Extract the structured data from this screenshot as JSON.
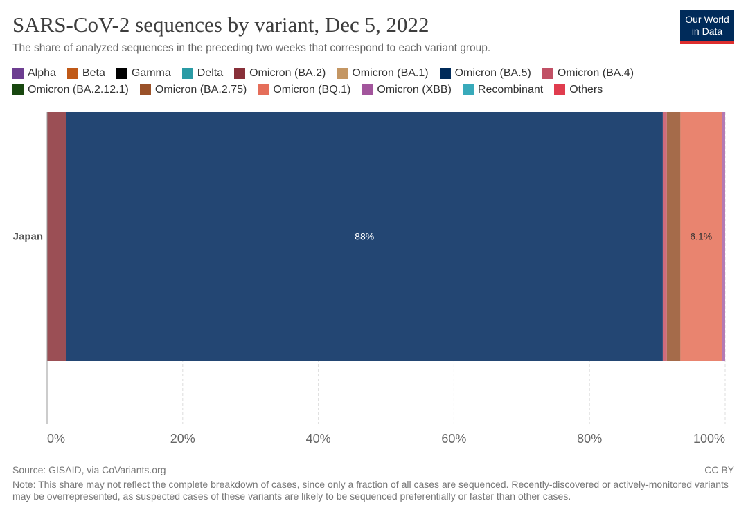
{
  "header": {
    "title": "SARS-CoV-2 sequences by variant, Dec 5, 2022",
    "subtitle": "The share of analyzed sequences in the preceding two weeks that correspond to each variant group.",
    "logo_line1": "Our World",
    "logo_line2": "in Data"
  },
  "legend": [
    {
      "label": "Alpha",
      "color": "#6d3e91"
    },
    {
      "label": "Beta",
      "color": "#c05917"
    },
    {
      "label": "Gamma",
      "color": "#000000"
    },
    {
      "label": "Delta",
      "color": "#2a9ba5"
    },
    {
      "label": "Omicron (BA.2)",
      "color": "#883039"
    },
    {
      "label": "Omicron (BA.1)",
      "color": "#c49663"
    },
    {
      "label": "Omicron (BA.5)",
      "color": "#002b5a"
    },
    {
      "label": "Omicron (BA.4)",
      "color": "#c15065"
    },
    {
      "label": "Omicron (BA.2.12.1)",
      "color": "#18470f"
    },
    {
      "label": "Omicron (BA.2.75)",
      "color": "#9a5129"
    },
    {
      "label": "Omicron (BQ.1)",
      "color": "#e56e5a"
    },
    {
      "label": "Omicron (XBB)",
      "color": "#a2559c"
    },
    {
      "label": "Recombinant",
      "color": "#38aaba"
    },
    {
      "label": "Others",
      "color": "#e03c4e"
    }
  ],
  "chart_data": {
    "type": "bar",
    "orientation": "horizontal",
    "stacked": true,
    "categories": [
      "Japan"
    ],
    "xlim": [
      0,
      100
    ],
    "x_ticks": [
      0,
      20,
      40,
      60,
      80,
      100
    ],
    "x_tick_labels": [
      "0%",
      "20%",
      "40%",
      "60%",
      "80%",
      "100%"
    ],
    "grid": "vertical dashed",
    "legend_position": "top",
    "series": [
      {
        "name": "Omicron (BA.2)",
        "values": [
          2.8
        ],
        "color": "#9b4f55",
        "label": ""
      },
      {
        "name": "Omicron (BA.5)",
        "values": [
          88.0
        ],
        "color": "#234673",
        "label": "88%"
      },
      {
        "name": "Omicron (BA.4)",
        "values": [
          0.6
        ],
        "color": "#cf6b7b",
        "label": ""
      },
      {
        "name": "Omicron (BA.2.75)",
        "values": [
          2.0
        ],
        "color": "#a56b4a",
        "label": ""
      },
      {
        "name": "Omicron (BQ.1)",
        "values": [
          6.1
        ],
        "color": "#e9846f",
        "label": "6.1%"
      },
      {
        "name": "Omicron (XBB)",
        "values": [
          0.5
        ],
        "color": "#b47ab3",
        "label": ""
      }
    ]
  },
  "footer": {
    "source": "Source: GISAID, via CoVariants.org",
    "license": "CC BY",
    "note": "Note: This share may not reflect the complete breakdown of cases, since only a fraction of all cases are sequenced. Recently-discovered or actively-monitored variants may be overrepresented, as suspected cases of these variants are likely to be sequenced preferentially or faster than other cases."
  }
}
